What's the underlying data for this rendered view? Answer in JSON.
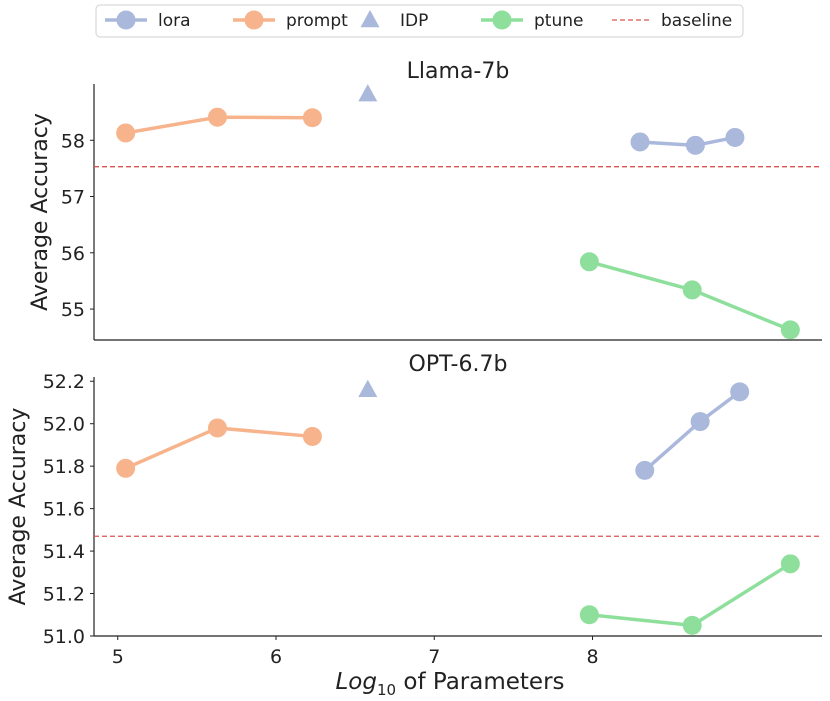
{
  "legend": {
    "items": [
      {
        "label": "lora",
        "color": "#aab8dc",
        "marker": "circle"
      },
      {
        "label": "prompt",
        "color": "#f7b48c",
        "marker": "circle"
      },
      {
        "label": "IDP",
        "color": "#aab8dc",
        "marker": "triangle"
      },
      {
        "label": "ptune",
        "color": "#8fdf9c",
        "marker": "circle"
      },
      {
        "label": "baseline",
        "color": "#d9534f",
        "marker": "dashed-line"
      }
    ],
    "placement": "top"
  },
  "x_axis": {
    "label_main": "Log",
    "label_sub": "10",
    "label_rest": " of Parameters",
    "ticks": [
      "5",
      "6",
      "7",
      "8"
    ]
  },
  "chart_data": [
    {
      "type": "line",
      "title": "Llama-7b",
      "ylabel": "Average Accuracy",
      "xlim": [
        4.85,
        9.45
      ],
      "ylim": [
        54.45,
        59.0
      ],
      "yticks": [
        55,
        56,
        57,
        58
      ],
      "ytick_labels": [
        "55",
        "56",
        "57",
        "58"
      ],
      "grid": false,
      "baseline": 57.53,
      "series": [
        {
          "name": "lora",
          "x": [
            8.3,
            8.65,
            8.9
          ],
          "y": [
            57.97,
            57.91,
            58.05
          ]
        },
        {
          "name": "prompt",
          "x": [
            5.05,
            5.63,
            6.23
          ],
          "y": [
            58.13,
            58.41,
            58.4
          ]
        },
        {
          "name": "IDP",
          "x": [
            6.58
          ],
          "y": [
            58.82
          ]
        },
        {
          "name": "ptune",
          "x": [
            7.98,
            8.63,
            9.25
          ],
          "y": [
            55.84,
            55.34,
            54.63
          ]
        },
        {
          "name": "baseline",
          "y": [
            57.53
          ]
        }
      ]
    },
    {
      "type": "line",
      "title": "OPT-6.7b",
      "ylabel": "Average Accuracy",
      "xlim": [
        4.85,
        9.45
      ],
      "ylim": [
        51.0,
        52.22
      ],
      "yticks": [
        51.0,
        51.2,
        51.4,
        51.6,
        51.8,
        52.0,
        52.2
      ],
      "ytick_labels": [
        "51.0",
        "51.2",
        "51.4",
        "51.6",
        "51.8",
        "52.0",
        "52.2"
      ],
      "grid": false,
      "baseline": 51.47,
      "series": [
        {
          "name": "lora",
          "x": [
            8.33,
            8.68,
            8.93
          ],
          "y": [
            51.78,
            52.01,
            52.15
          ]
        },
        {
          "name": "prompt",
          "x": [
            5.05,
            5.63,
            6.23
          ],
          "y": [
            51.79,
            51.98,
            51.94
          ]
        },
        {
          "name": "IDP",
          "x": [
            6.58
          ],
          "y": [
            52.16
          ]
        },
        {
          "name": "ptune",
          "x": [
            7.98,
            8.63,
            9.25
          ],
          "y": [
            51.1,
            51.05,
            51.34
          ]
        },
        {
          "name": "baseline",
          "y": [
            51.47
          ]
        }
      ]
    }
  ]
}
